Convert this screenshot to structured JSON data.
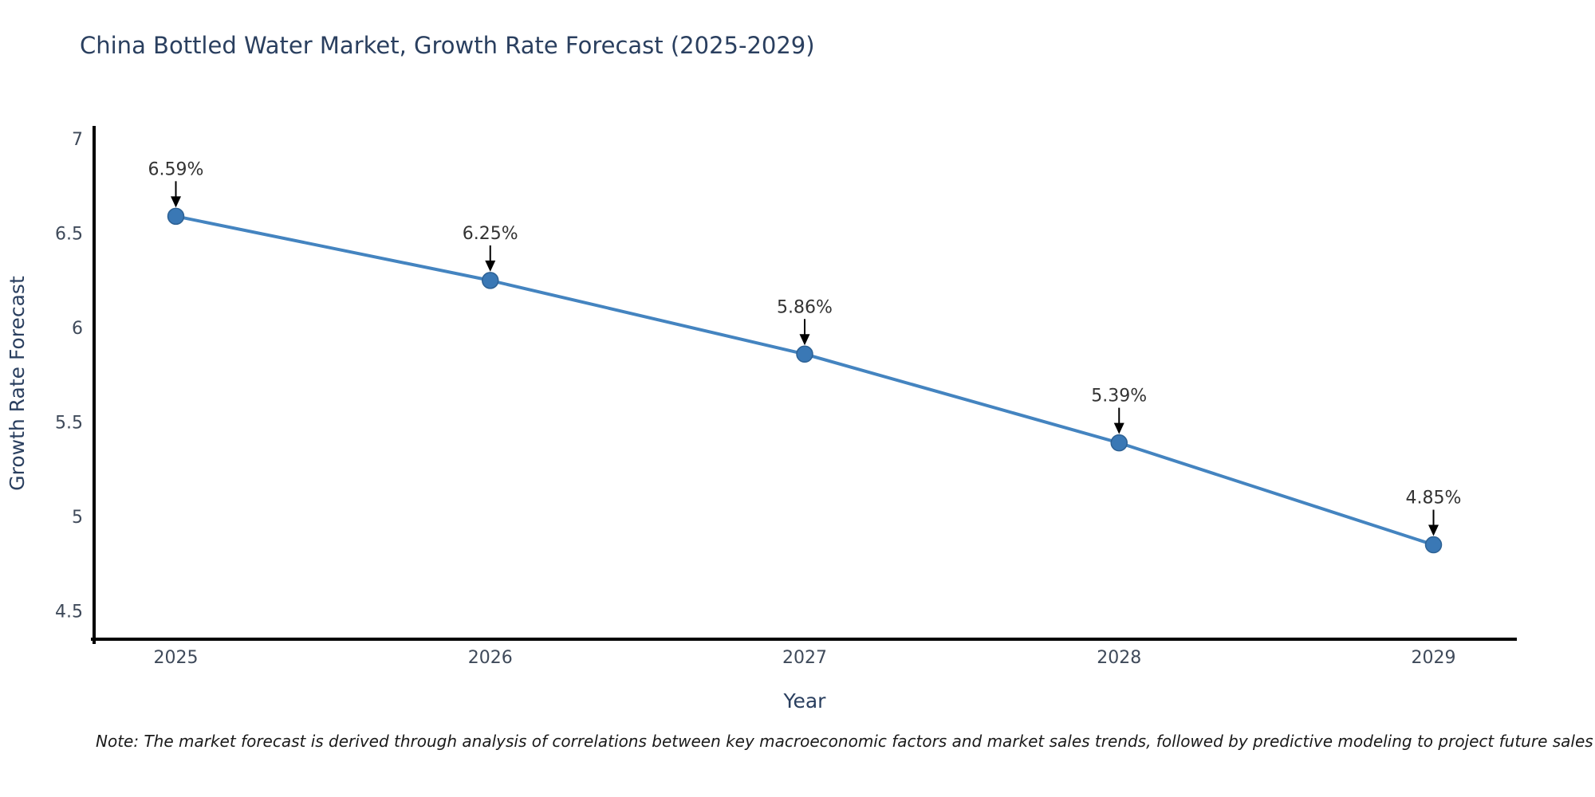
{
  "header": {
    "title": "China Bottled Water Market, Growth Rate Forecast (2025-2029)"
  },
  "footnote": {
    "text": "Note: The market forecast is derived through analysis of correlations between key macroeconomic factors and market sales trends, followed by predictive modeling to project future sales"
  },
  "chart_data": {
    "type": "line",
    "title": "China Bottled Water Market, Growth Rate Forecast (2025-2029)",
    "x": [
      2025,
      2026,
      2027,
      2028,
      2029
    ],
    "series": [
      {
        "name": "Growth Rate Forecast",
        "values": [
          6.59,
          6.25,
          5.86,
          5.39,
          4.85
        ]
      }
    ],
    "point_labels": [
      "6.59%",
      "6.25%",
      "5.86%",
      "5.39%",
      "4.85%"
    ],
    "xlabel": "Year",
    "ylabel": "Growth Rate Forecast",
    "xticks": [
      "2025",
      "2026",
      "2027",
      "2028",
      "2029"
    ],
    "xtick_values": [
      2025,
      2026,
      2027,
      2028,
      2029
    ],
    "yticks": [
      "4.5",
      "5",
      "5.5",
      "6",
      "6.5",
      "7"
    ],
    "ytick_values": [
      4.5,
      5,
      5.5,
      6,
      6.5,
      7
    ],
    "xlim": [
      2024.74,
      2029.26
    ],
    "ylim": [
      4.35,
      7.06
    ],
    "grid": false,
    "legend": false,
    "marker_size": 10,
    "line_width": 4,
    "colors": {
      "line": "#4484c0",
      "marker_fill": "#3a78b5",
      "marker_border": "#2d6194",
      "arrow": "#000000",
      "axis_line": "#000000",
      "title_text": "#2a3f5f",
      "axis_label_text": "#2a3f5f",
      "tick_text": "#3f4a5a",
      "annotation_text": "#333333",
      "background": "#ffffff"
    }
  }
}
